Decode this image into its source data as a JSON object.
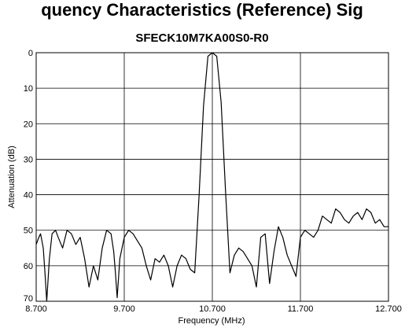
{
  "chart_data": {
    "type": "line",
    "title_partial": "quency Characteristics (Reference) Sig",
    "title": "SFECK10M7KA00S0-R0",
    "xlabel": "Frequency (MHz)",
    "ylabel": "Attenuation (dB)",
    "x_ticks": [
      "8.700",
      "9.700",
      "10.700",
      "11.700",
      "12.700"
    ],
    "y_ticks": [
      "0",
      "10",
      "20",
      "30",
      "40",
      "50",
      "60",
      "70"
    ],
    "xlim": [
      8.7,
      12.7
    ],
    "ylim": [
      0,
      70
    ],
    "y_inverted": true,
    "grid": true,
    "line_color": "#000000",
    "series": [
      {
        "x": [
          8.7,
          8.73,
          8.75,
          8.78,
          8.8,
          8.82,
          8.85,
          8.88,
          8.92,
          8.95,
          9.0,
          9.05,
          9.1,
          9.15,
          9.2,
          9.25,
          9.3,
          9.35,
          9.4,
          9.45,
          9.5,
          9.55,
          9.58,
          9.6,
          9.62,
          9.65,
          9.7,
          9.75,
          9.8,
          9.85,
          9.9,
          9.95,
          10.0,
          10.05,
          10.1,
          10.15,
          10.2,
          10.25,
          10.3,
          10.35,
          10.4,
          10.45,
          10.5,
          10.55,
          10.6,
          10.65,
          10.7,
          10.75,
          10.8,
          10.85,
          10.9,
          10.95,
          11.0,
          11.05,
          11.1,
          11.15,
          11.2,
          11.25,
          11.3,
          11.35,
          11.4,
          11.45,
          11.5,
          11.55,
          11.6,
          11.65,
          11.7,
          11.75,
          11.8,
          11.85,
          11.9,
          11.95,
          12.0,
          12.05,
          12.1,
          12.15,
          12.2,
          12.25,
          12.3,
          12.35,
          12.4,
          12.45,
          12.5,
          12.55,
          12.6,
          12.65,
          12.7
        ],
        "y": [
          54,
          52,
          51,
          55,
          62,
          70,
          58,
          51,
          50,
          52,
          55,
          50,
          51,
          54,
          52,
          58,
          66,
          60,
          64,
          55,
          50,
          51,
          56,
          62,
          69,
          58,
          52,
          50,
          51,
          53,
          55,
          60,
          64,
          58,
          59,
          57,
          60,
          66,
          60,
          57,
          58,
          61,
          62,
          40,
          15,
          1,
          0,
          1,
          14,
          39,
          62,
          57,
          55,
          56,
          58,
          60,
          66,
          52,
          51,
          65,
          56,
          49,
          52,
          57,
          60,
          63,
          52,
          50,
          51,
          52,
          50,
          46,
          47,
          48,
          44,
          45,
          47,
          48,
          46,
          45,
          47,
          44,
          45,
          48,
          47,
          49,
          49
        ]
      }
    ]
  }
}
